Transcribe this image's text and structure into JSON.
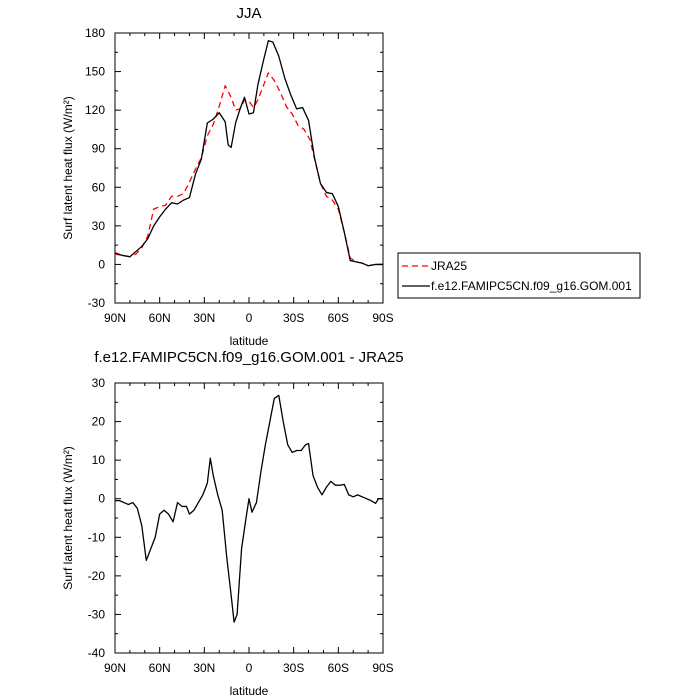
{
  "chart_data": [
    {
      "type": "line",
      "title": "JJA",
      "xlabel": "latitude",
      "ylabel": "Surf latent heat flux (W/m²)",
      "xlim": [
        90,
        -90
      ],
      "ylim": [
        -30,
        180
      ],
      "xticks": [
        90,
        60,
        30,
        0,
        -30,
        -60,
        -90
      ],
      "xtick_labels": [
        "90N",
        "60N",
        "30N",
        "0",
        "30S",
        "60S",
        "90S"
      ],
      "yticks": [
        -30,
        0,
        30,
        60,
        90,
        120,
        150,
        180
      ],
      "ytick_labels": [
        "-30",
        "0",
        "30",
        "60",
        "90",
        "120",
        "150",
        "180"
      ],
      "legend_position": "right",
      "series": [
        {
          "name": "JRA25",
          "color": "#ff0000",
          "dash": "dashed",
          "points": [
            [
              90,
              8
            ],
            [
              85,
              7
            ],
            [
              80,
              6
            ],
            [
              76,
              8
            ],
            [
              72,
              13
            ],
            [
              68,
              22
            ],
            [
              64,
              43
            ],
            [
              60,
              45
            ],
            [
              56,
              46
            ],
            [
              52,
              53
            ],
            [
              48,
              53
            ],
            [
              44,
              55
            ],
            [
              40,
              64
            ],
            [
              36,
              74
            ],
            [
              32,
              83
            ],
            [
              28,
              100
            ],
            [
              24,
              109
            ],
            [
              20,
              123
            ],
            [
              16,
              139
            ],
            [
              12,
              130
            ],
            [
              9,
              120
            ],
            [
              6,
              121
            ],
            [
              3,
              128
            ],
            [
              0,
              127
            ],
            [
              -3,
              122
            ],
            [
              -6,
              128
            ],
            [
              -10,
              140
            ],
            [
              -13,
              149
            ],
            [
              -17,
              143
            ],
            [
              -21,
              134
            ],
            [
              -25,
              123
            ],
            [
              -29,
              117
            ],
            [
              -33,
              108
            ],
            [
              -37,
              105
            ],
            [
              -41,
              97
            ],
            [
              -44,
              82
            ],
            [
              -48,
              63
            ],
            [
              -52,
              53
            ],
            [
              -56,
              50
            ],
            [
              -60,
              43
            ],
            [
              -64,
              25
            ],
            [
              -68,
              5
            ],
            [
              -72,
              2
            ],
            [
              -76,
              1
            ],
            [
              -80,
              -1
            ],
            [
              -85,
              0
            ],
            [
              -90,
              0
            ]
          ]
        },
        {
          "name": "f.e12.FAMIPC5CN.f09_g16.GOM.001",
          "color": "#000000",
          "dash": "solid",
          "points": [
            [
              90,
              9
            ],
            [
              85,
              7
            ],
            [
              80,
              6
            ],
            [
              76,
              10
            ],
            [
              72,
              14
            ],
            [
              68,
              20
            ],
            [
              64,
              30
            ],
            [
              60,
              37
            ],
            [
              56,
              43
            ],
            [
              52,
              48
            ],
            [
              48,
              47
            ],
            [
              44,
              50
            ],
            [
              40,
              52
            ],
            [
              36,
              70
            ],
            [
              32,
              82
            ],
            [
              28,
              110
            ],
            [
              24,
              113
            ],
            [
              20,
              118
            ],
            [
              16,
              111
            ],
            [
              14,
              93
            ],
            [
              12,
              91
            ],
            [
              9,
              110
            ],
            [
              6,
              121
            ],
            [
              3,
              130
            ],
            [
              0,
              117
            ],
            [
              -3,
              118
            ],
            [
              -6,
              140
            ],
            [
              -10,
              160
            ],
            [
              -13,
              174
            ],
            [
              -16,
              173
            ],
            [
              -20,
              162
            ],
            [
              -24,
              145
            ],
            [
              -28,
              132
            ],
            [
              -32,
              121
            ],
            [
              -36,
              122
            ],
            [
              -40,
              112
            ],
            [
              -44,
              83
            ],
            [
              -48,
              63
            ],
            [
              -52,
              56
            ],
            [
              -56,
              55
            ],
            [
              -60,
              45
            ],
            [
              -64,
              25
            ],
            [
              -68,
              3
            ],
            [
              -72,
              2
            ],
            [
              -76,
              1
            ],
            [
              -80,
              -1
            ],
            [
              -85,
              0
            ],
            [
              -90,
              0
            ]
          ]
        }
      ]
    },
    {
      "type": "line",
      "title": "f.e12.FAMIPC5CN.f09_g16.GOM.001 - JRA25",
      "xlabel": "latitude",
      "ylabel": "Surf latent heat flux (W/m²)",
      "xlim": [
        90,
        -90
      ],
      "ylim": [
        -40,
        30
      ],
      "xticks": [
        90,
        60,
        30,
        0,
        -30,
        -60,
        -90
      ],
      "xtick_labels": [
        "90N",
        "60N",
        "30N",
        "0",
        "30S",
        "60S",
        "90S"
      ],
      "yticks": [
        -40,
        -30,
        -20,
        -10,
        0,
        10,
        20,
        30
      ],
      "ytick_labels": [
        "-40",
        "-30",
        "-20",
        "-10",
        "0",
        "10",
        "20",
        "30"
      ],
      "series": [
        {
          "color": "#000000",
          "dash": "solid",
          "points": [
            [
              90,
              -0.5
            ],
            [
              87,
              -0.5
            ],
            [
              84,
              -1
            ],
            [
              81,
              -1.5
            ],
            [
              78,
              -1
            ],
            [
              75,
              -2.5
            ],
            [
              72,
              -7
            ],
            [
              69,
              -16
            ],
            [
              66,
              -13
            ],
            [
              63,
              -10
            ],
            [
              60,
              -4
            ],
            [
              57,
              -3
            ],
            [
              54,
              -4
            ],
            [
              51,
              -6
            ],
            [
              48,
              -1
            ],
            [
              45,
              -2
            ],
            [
              42,
              -2
            ],
            [
              40,
              -4
            ],
            [
              37,
              -3
            ],
            [
              34,
              -1
            ],
            [
              31,
              1
            ],
            [
              28,
              4
            ],
            [
              26,
              10.5
            ],
            [
              24,
              6
            ],
            [
              21,
              1
            ],
            [
              18,
              -3
            ],
            [
              15,
              -15
            ],
            [
              12,
              -25
            ],
            [
              10,
              -32
            ],
            [
              8,
              -30
            ],
            [
              5,
              -13
            ],
            [
              2,
              -5
            ],
            [
              0,
              0
            ],
            [
              -2,
              -3.5
            ],
            [
              -5,
              -1
            ],
            [
              -8,
              7
            ],
            [
              -11,
              14
            ],
            [
              -14,
              20
            ],
            [
              -17,
              26
            ],
            [
              -20,
              26.8
            ],
            [
              -23,
              20
            ],
            [
              -26,
              14
            ],
            [
              -29,
              12
            ],
            [
              -32,
              12.5
            ],
            [
              -35,
              12.5
            ],
            [
              -38,
              14
            ],
            [
              -40,
              14.3
            ],
            [
              -43,
              6
            ],
            [
              -46,
              3
            ],
            [
              -49,
              1
            ],
            [
              -52,
              3
            ],
            [
              -55,
              4.5
            ],
            [
              -58,
              3.5
            ],
            [
              -61,
              3.5
            ],
            [
              -64,
              3.7
            ],
            [
              -67,
              1
            ],
            [
              -70,
              0.5
            ],
            [
              -73,
              1
            ],
            [
              -76,
              0.5
            ],
            [
              -79,
              0
            ],
            [
              -82,
              -0.5
            ],
            [
              -85,
              -1.2
            ],
            [
              -87,
              0
            ],
            [
              -90,
              0
            ]
          ]
        }
      ]
    }
  ]
}
